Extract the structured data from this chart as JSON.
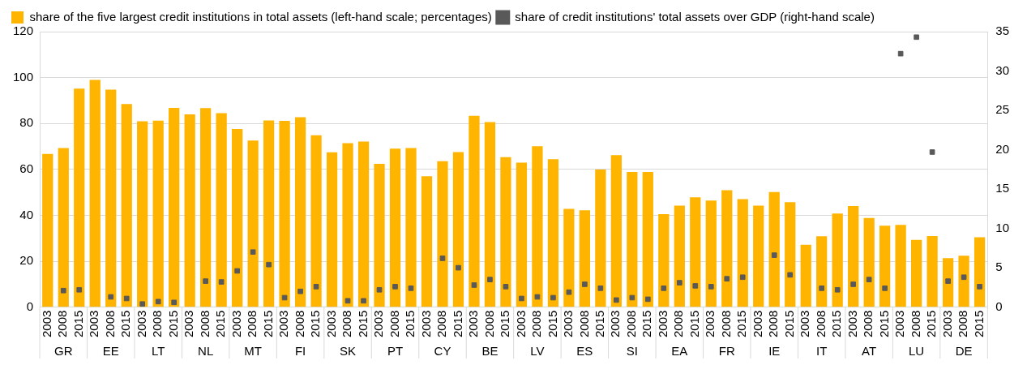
{
  "chart_data": {
    "type": "bar",
    "categories": [
      "2003",
      "2008",
      "2015",
      "2003",
      "2008",
      "2015",
      "2003",
      "2008",
      "2015",
      "2003",
      "2008",
      "2015",
      "2003",
      "2008",
      "2015",
      "2003",
      "2008",
      "2015",
      "2003",
      "2008",
      "2015",
      "2003",
      "2008",
      "2015",
      "2003",
      "2008",
      "2015",
      "2003",
      "2008",
      "2015",
      "2003",
      "2008",
      "2015",
      "2003",
      "2008",
      "2015",
      "2003",
      "2008",
      "2015",
      "2003",
      "2008",
      "2015",
      "2003",
      "2008",
      "2015",
      "2003",
      "2008",
      "2015",
      "2003",
      "2008",
      "2015",
      "2003",
      "2008",
      "2015",
      "2003",
      "2008",
      "2015",
      "2003",
      "2008",
      "2015"
    ],
    "annotations": [
      "GR",
      "EE",
      "LT",
      "NL",
      "MT",
      "FI",
      "SK",
      "PT",
      "CY",
      "BE",
      "LV",
      "ES",
      "SI",
      "EA",
      "FR",
      "IE",
      "IT",
      "AT",
      "LU",
      "DE"
    ],
    "series": [
      {
        "name": "share of the five largest credit institutions in total assets (left-hand scale; percentages)",
        "color": "#ffb400",
        "values": [
          66.7,
          69.3,
          95.2,
          99,
          94.7,
          88.5,
          81,
          81.2,
          86.8,
          84,
          86.7,
          84.5,
          77.6,
          72.6,
          81.3,
          81.1,
          82.7,
          74.9,
          67.4,
          71.4,
          72.1,
          62.4,
          69,
          69.3,
          57,
          63.6,
          67.5,
          83.3,
          80.6,
          65.3,
          62.9,
          70.1,
          64.4,
          42.8,
          42.2,
          59.9,
          66.2,
          58.9,
          58.9,
          40.5,
          44.2,
          47.8,
          46.4,
          50.9,
          47,
          44.2,
          50.1,
          45.7,
          27.2,
          30.9,
          40.8,
          44,
          38.8,
          35.5,
          35.8,
          29.3,
          31,
          21.3,
          22.4,
          30.4
        ]
      },
      {
        "name": "share of credit institutions' total assets over GDP (right-hand scale)",
        "type": "scatter",
        "axis": "y2",
        "marker": "square",
        "color": "#595959",
        "values": [
          null,
          2.1,
          2.2,
          null,
          1.3,
          1.1,
          0.4,
          0.7,
          0.6,
          null,
          3.3,
          3.2,
          4.6,
          7,
          5.4,
          1.2,
          2,
          2.6,
          null,
          0.8,
          0.8,
          2.2,
          2.6,
          2.4,
          null,
          6.2,
          5,
          2.8,
          3.5,
          2.6,
          1.1,
          1.3,
          1.2,
          1.9,
          2.9,
          2.4,
          0.9,
          1.2,
          1,
          2.4,
          3.1,
          2.7,
          2.6,
          3.6,
          3.8,
          null,
          6.6,
          4.1,
          null,
          2.4,
          2.2,
          2.9,
          3.5,
          2.4,
          32.2,
          34.3,
          19.7,
          3.3,
          3.8,
          2.6
        ]
      }
    ],
    "ylim": [
      0,
      120
    ],
    "yticks": [
      0,
      20,
      40,
      60,
      80,
      100,
      120
    ],
    "y2lim": [
      0,
      35
    ],
    "y2ticks": [
      0,
      5,
      10,
      15,
      20,
      25,
      30,
      35
    ],
    "grid": "y",
    "legend": "top left"
  }
}
